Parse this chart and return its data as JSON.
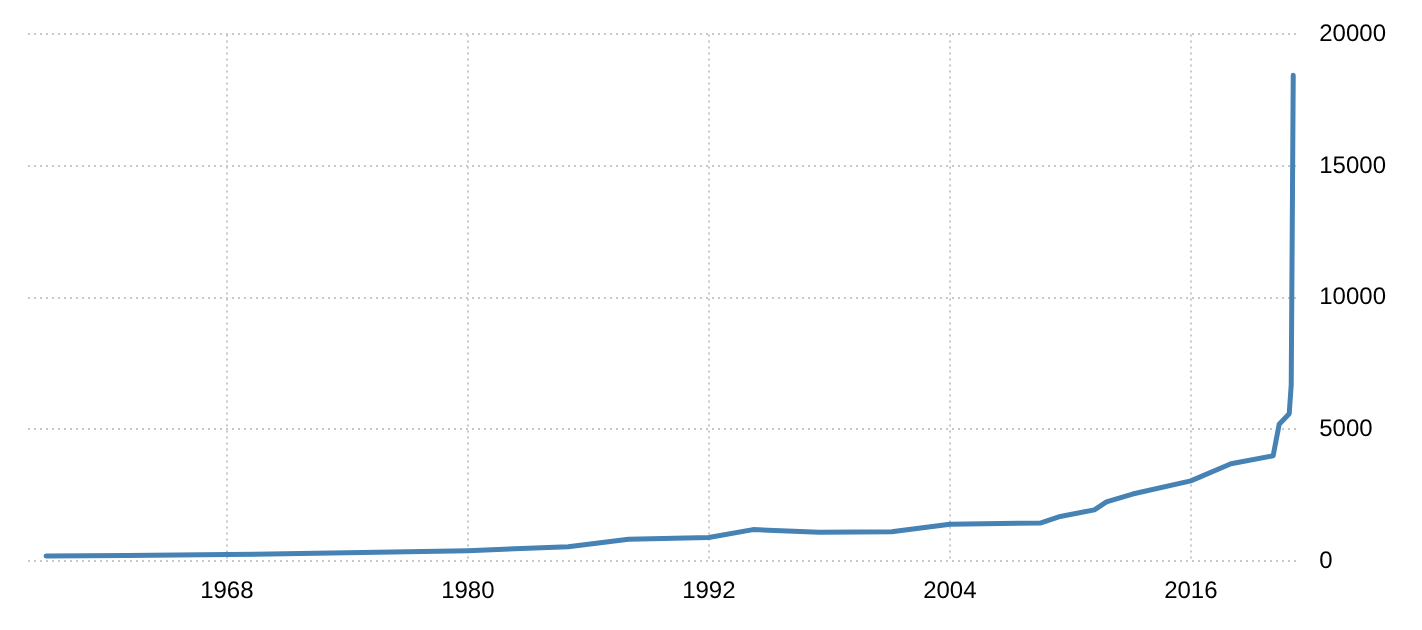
{
  "chart_data": {
    "type": "line",
    "x": [
      1959,
      1963,
      1968,
      1974,
      1980,
      1985,
      1988,
      1992,
      1994.2,
      1997.5,
      2001.1,
      2004,
      2008.5,
      2009.5,
      2011.2,
      2011.8,
      2013.1,
      2016,
      2018,
      2020.1,
      2020.4,
      2020.9,
      2021,
      2021.1
    ],
    "series": [
      {
        "color": "#4682b4",
        "values": [
          200,
          220,
          250,
          320,
          400,
          550,
          830,
          900,
          1200,
          1100,
          1120,
          1400,
          1450,
          1700,
          1950,
          2250,
          2550,
          3050,
          3700,
          4000,
          5200,
          5600,
          6700,
          18450
        ]
      }
    ],
    "xlim": [
      1958.1,
      2021.4
    ],
    "xticks": [
      1968,
      1980,
      1992,
      2004,
      2016
    ],
    "ylim": [
      0,
      20000
    ],
    "yticks": [
      0,
      5000,
      10000,
      15000,
      20000
    ],
    "grid": true,
    "legend": false,
    "marker": "none",
    "line_style": "solid"
  }
}
